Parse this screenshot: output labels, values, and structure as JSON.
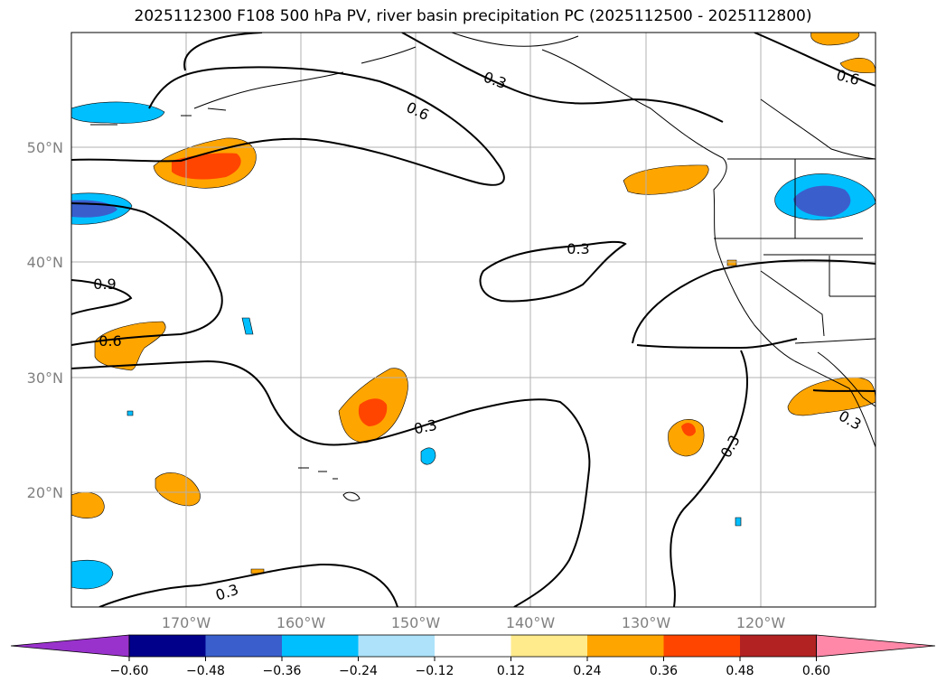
{
  "title": "2025112300 F108 500 hPa PV, river basin precipitation PC (2025112500 - 2025112800)",
  "map": {
    "lat_labels": [
      "50°N",
      "40°N",
      "30°N",
      "20°N"
    ],
    "lon_labels": [
      "170°W",
      "160°W",
      "150°W",
      "140°W",
      "130°W",
      "120°W"
    ],
    "contour_labels": [
      "0.3",
      "0.6",
      "0.3",
      "0.9",
      "0.6",
      "0.3",
      "0.3",
      "0.3",
      "0.6",
      "0.3"
    ]
  },
  "colorbar": {
    "ticks": [
      "−0.60",
      "−0.48",
      "−0.36",
      "−0.24",
      "−0.12",
      "0.12",
      "0.24",
      "0.36",
      "0.48",
      "0.60"
    ],
    "colors": [
      "#9932CC",
      "#00008B",
      "#3A5FCD",
      "#00BFFF",
      "#ADE2FA",
      "#FFFFFF",
      "#FFEB8C",
      "#FFA500",
      "#FF4500",
      "#B22222",
      "#FF88A8"
    ],
    "extend": "both"
  }
}
